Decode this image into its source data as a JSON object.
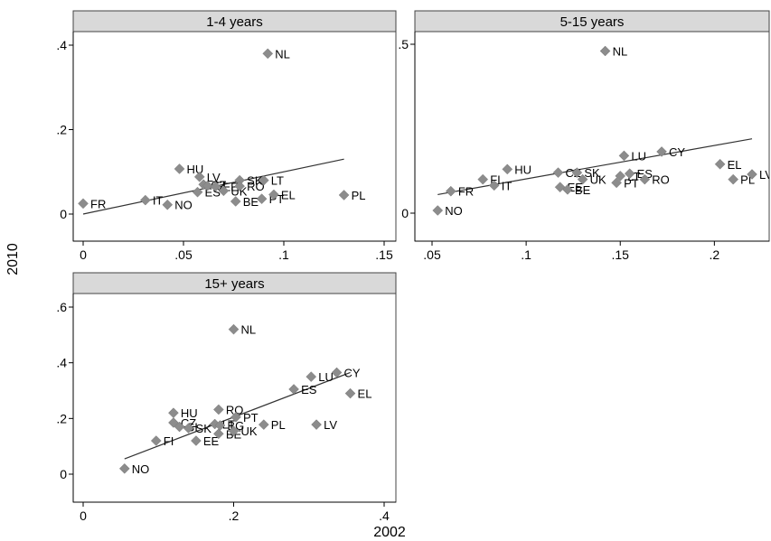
{
  "chart_data": [
    {
      "type": "scatter",
      "title": "1-4 years",
      "xlim": [
        0,
        0.15
      ],
      "ylim": [
        0,
        0.4
      ],
      "xticks": [
        0,
        0.05,
        0.1,
        0.15
      ],
      "xtick_labels": [
        "0",
        ".05",
        ".1",
        ".15"
      ],
      "yticks": [
        0,
        0.2,
        0.4
      ],
      "ytick_labels": [
        "0",
        ".2",
        ".4"
      ],
      "fit_line": [
        [
          0,
          0.0
        ],
        [
          0.13,
          0.13
        ]
      ],
      "points": [
        {
          "label": "NL",
          "x": 0.092,
          "y": 0.38
        },
        {
          "label": "FR",
          "x": 0.0,
          "y": 0.025
        },
        {
          "label": "IT",
          "x": 0.031,
          "y": 0.033
        },
        {
          "label": "NO",
          "x": 0.042,
          "y": 0.022
        },
        {
          "label": "HU",
          "x": 0.048,
          "y": 0.107
        },
        {
          "label": "LV",
          "x": 0.058,
          "y": 0.088
        },
        {
          "label": "ES",
          "x": 0.057,
          "y": 0.052
        },
        {
          "label": "CZ",
          "x": 0.06,
          "y": 0.07
        },
        {
          "label": "FI",
          "x": 0.062,
          "y": 0.067
        },
        {
          "label": "EE",
          "x": 0.066,
          "y": 0.065
        },
        {
          "label": "SK",
          "x": 0.078,
          "y": 0.08
        },
        {
          "label": "UK",
          "x": 0.07,
          "y": 0.055
        },
        {
          "label": "RO",
          "x": 0.078,
          "y": 0.066
        },
        {
          "label": "BE",
          "x": 0.076,
          "y": 0.03
        },
        {
          "label": "LT",
          "x": 0.09,
          "y": 0.08
        },
        {
          "label": "PT",
          "x": 0.089,
          "y": 0.036
        },
        {
          "label": "EL",
          "x": 0.095,
          "y": 0.046
        },
        {
          "label": "PL",
          "x": 0.13,
          "y": 0.045
        }
      ]
    },
    {
      "type": "scatter",
      "title": "5-15 years",
      "xlim": [
        0.05,
        0.22
      ],
      "ylim": [
        0,
        0.5
      ],
      "xticks": [
        0.05,
        0.1,
        0.15,
        0.2
      ],
      "xtick_labels": [
        ".05",
        ".1",
        ".15",
        ".2"
      ],
      "yticks": [
        0,
        0.5
      ],
      "ytick_labels": [
        "0",
        ".5"
      ],
      "fit_line": [
        [
          0.053,
          0.055
        ],
        [
          0.22,
          0.22
        ]
      ],
      "points": [
        {
          "label": "NL",
          "x": 0.142,
          "y": 0.48
        },
        {
          "label": "NO",
          "x": 0.053,
          "y": 0.008
        },
        {
          "label": "FR",
          "x": 0.06,
          "y": 0.065
        },
        {
          "label": "FI",
          "x": 0.077,
          "y": 0.1
        },
        {
          "label": "IT",
          "x": 0.083,
          "y": 0.082
        },
        {
          "label": "HU",
          "x": 0.09,
          "y": 0.13
        },
        {
          "label": "CZ",
          "x": 0.117,
          "y": 0.12
        },
        {
          "label": "SK",
          "x": 0.127,
          "y": 0.12
        },
        {
          "label": "EE",
          "x": 0.118,
          "y": 0.077
        },
        {
          "label": "BE",
          "x": 0.122,
          "y": 0.07
        },
        {
          "label": "UK",
          "x": 0.13,
          "y": 0.1
        },
        {
          "label": "LU",
          "x": 0.152,
          "y": 0.17
        },
        {
          "label": "LT",
          "x": 0.15,
          "y": 0.11
        },
        {
          "label": "ES",
          "x": 0.155,
          "y": 0.117
        },
        {
          "label": "PT",
          "x": 0.148,
          "y": 0.09
        },
        {
          "label": "RO",
          "x": 0.163,
          "y": 0.1
        },
        {
          "label": "CY",
          "x": 0.172,
          "y": 0.182
        },
        {
          "label": "EL",
          "x": 0.203,
          "y": 0.145
        },
        {
          "label": "PL",
          "x": 0.21,
          "y": 0.1
        },
        {
          "label": "LV",
          "x": 0.22,
          "y": 0.115
        }
      ]
    },
    {
      "type": "scatter",
      "title": "15+ years",
      "xlim": [
        0,
        0.4
      ],
      "ylim": [
        0,
        0.6
      ],
      "xticks": [
        0,
        0.2,
        0.4
      ],
      "xtick_labels": [
        "0",
        ".2",
        ".4"
      ],
      "yticks": [
        0,
        0.2,
        0.4,
        0.6
      ],
      "ytick_labels": [
        "0",
        ".2",
        ".4",
        ".6"
      ],
      "fit_line": [
        [
          0.055,
          0.055
        ],
        [
          0.355,
          0.365
        ]
      ],
      "points": [
        {
          "label": "NL",
          "x": 0.2,
          "y": 0.52
        },
        {
          "label": "NO",
          "x": 0.055,
          "y": 0.02
        },
        {
          "label": "FI",
          "x": 0.097,
          "y": 0.12
        },
        {
          "label": "EE",
          "x": 0.15,
          "y": 0.12
        },
        {
          "label": "HU",
          "x": 0.12,
          "y": 0.22
        },
        {
          "label": "CZ",
          "x": 0.12,
          "y": 0.185
        },
        {
          "label": "SI",
          "x": 0.128,
          "y": 0.17
        },
        {
          "label": "SK",
          "x": 0.14,
          "y": 0.165
        },
        {
          "label": "LT",
          "x": 0.175,
          "y": 0.18
        },
        {
          "label": "BG",
          "x": 0.182,
          "y": 0.175
        },
        {
          "label": "RO",
          "x": 0.18,
          "y": 0.232
        },
        {
          "label": "PT",
          "x": 0.203,
          "y": 0.205
        },
        {
          "label": "BE",
          "x": 0.18,
          "y": 0.145
        },
        {
          "label": "UK",
          "x": 0.2,
          "y": 0.155
        },
        {
          "label": "PL",
          "x": 0.24,
          "y": 0.178
        },
        {
          "label": "ES",
          "x": 0.28,
          "y": 0.305
        },
        {
          "label": "LU",
          "x": 0.303,
          "y": 0.35
        },
        {
          "label": "CY",
          "x": 0.337,
          "y": 0.365
        },
        {
          "label": "EL",
          "x": 0.355,
          "y": 0.29
        },
        {
          "label": "LV",
          "x": 0.31,
          "y": 0.178
        }
      ]
    }
  ],
  "shared": {
    "xlabel": "2002",
    "ylabel": "2010"
  }
}
